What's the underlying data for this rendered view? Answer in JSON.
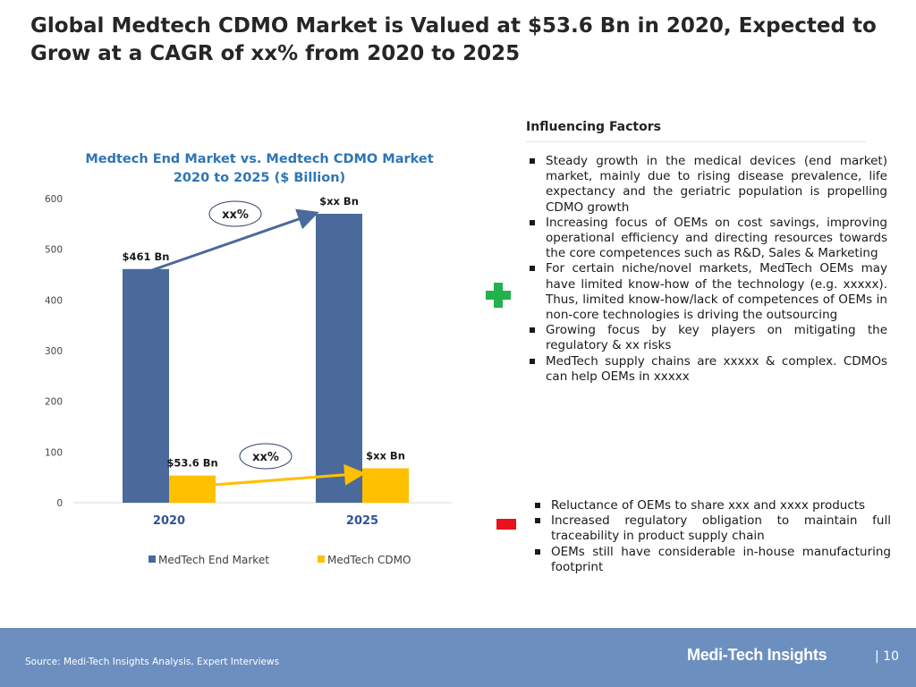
{
  "title": "Global Medtech CDMO Market is Valued at $53.6 Bn in 2020, Expected to Grow at a CAGR of xx% from 2020 to 2025",
  "chart_data": {
    "type": "bar",
    "title": "Medtech End Market vs. Medtech CDMO Market",
    "subtitle": "2020 to 2025 ($ Billion)",
    "categories": [
      "2020",
      "2025"
    ],
    "series": [
      {
        "name": "MedTech End Market",
        "color": "#4a6a9b",
        "values": [
          461,
          570
        ],
        "labels": [
          "$461 Bn",
          "$xx Bn"
        ]
      },
      {
        "name": "MedTech CDMO",
        "color": "#ffc000",
        "values": [
          53.6,
          68
        ],
        "labels": [
          "$53.6 Bn",
          "$xx Bn"
        ]
      }
    ],
    "ylim": [
      0,
      600
    ],
    "yticks": [
      "0",
      "100",
      "200",
      "300",
      "400",
      "500",
      "600"
    ],
    "grid": false,
    "legend": "bottom",
    "annotations": [
      {
        "series": "MedTech End Market",
        "text": "xx%",
        "arrow_color": "#4a6a9b"
      },
      {
        "series": "MedTech CDMO",
        "text": "xx%",
        "arrow_color": "#ffc000"
      }
    ]
  },
  "factors": {
    "heading": "Influencing Factors",
    "drivers_icon": "plus-icon",
    "restraints_icon": "minus-icon",
    "drivers": [
      "Steady growth in the medical devices (end market) market, mainly due to rising disease prevalence, life expectancy and the geriatric population is propelling CDMO growth",
      "Increasing focus of OEMs on cost savings, improving operational efficiency and directing resources towards the core competences such as R&D, Sales & Marketing",
      "For certain niche/novel markets, MedTech OEMs may have limited know-how of the technology (e.g. xxxxx). Thus, limited know-how/lack of competences of OEMs in non-core technologies is driving the outsourcing",
      "Growing focus by key players on mitigating the regulatory & xx risks",
      "MedTech supply chains are xxxxx & complex. CDMOs can help OEMs in xxxxx"
    ],
    "restraints": [
      "Reluctance of OEMs to share xxx and xxxx products",
      "Increased regulatory obligation to maintain full traceability in product supply chain",
      "OEMs still have considerable in-house manufacturing footprint"
    ]
  },
  "footer": {
    "source": "Source: Medi-Tech Insights Analysis, Expert Interviews",
    "brand": "Medi-Tech Insights",
    "page": "| 10"
  }
}
